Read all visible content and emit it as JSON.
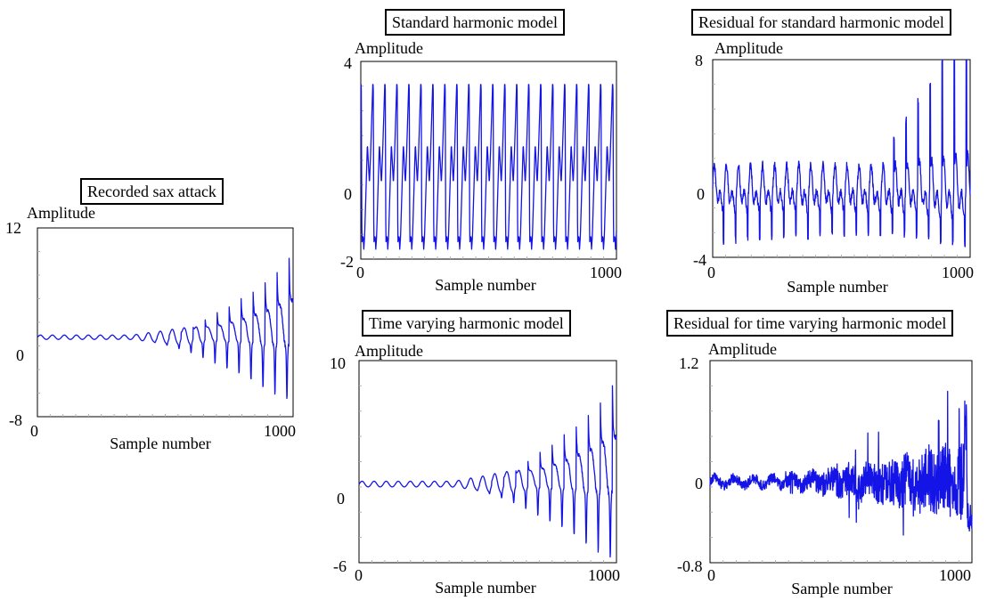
{
  "colors": {
    "line": "#1414e6",
    "axis": "#000000",
    "tick_minor": "#b0b0b0"
  },
  "chart_data": [
    {
      "id": "p1",
      "type": "line",
      "title": "Recorded sax attack",
      "ylabel": "Amplitude",
      "xlabel": "Sample number",
      "xlim": [
        0,
        1024
      ],
      "ylim": [
        -8,
        12
      ],
      "x_tick_labels": [
        "0",
        "1000"
      ],
      "y_tick_labels": [
        "12",
        "0",
        "-8"
      ],
      "y_tick_values": [
        12,
        0,
        -8
      ],
      "series": [
        {
          "period": 48,
          "start_amp": 0.25,
          "end_amp": 7.0,
          "growth_start": 0.35,
          "peak_boost": 1.6,
          "neg_scale": 0.85,
          "offset": 0.4,
          "shape": "growing"
        }
      ]
    },
    {
      "id": "p2",
      "type": "line",
      "title": "Standard harmonic model",
      "ylabel": "Amplitude",
      "xlabel": "Sample number",
      "xlim": [
        0,
        1024
      ],
      "ylim": [
        -2,
        4
      ],
      "x_tick_labels": [
        "0",
        "1000"
      ],
      "y_tick_labels": [
        "4",
        "0",
        "-2"
      ],
      "y_tick_values": [
        4,
        0,
        -2
      ],
      "series": [
        {
          "period": 48,
          "peak": 3.3,
          "low": -1.6,
          "shape": "periodic"
        }
      ]
    },
    {
      "id": "p3",
      "type": "line",
      "title": "Residual for standard harmonic model",
      "ylabel": "Amplitude",
      "xlabel": "Sample number",
      "xlim": [
        0,
        1024
      ],
      "ylim": [
        -4,
        8
      ],
      "x_tick_labels": [
        "0",
        "1000"
      ],
      "y_tick_labels": [
        "8",
        "0",
        "-4"
      ],
      "y_tick_values": [
        8,
        0,
        -4
      ],
      "series": [
        {
          "period": 48,
          "shape": "residual1"
        }
      ]
    },
    {
      "id": "p4",
      "type": "line",
      "title": "Time varying harmonic model",
      "ylabel": "Amplitude",
      "xlabel": "Sample number",
      "xlim": [
        0,
        1024
      ],
      "ylim": [
        -6,
        10
      ],
      "x_tick_labels": [
        "0",
        "1000"
      ],
      "y_tick_labels": [
        "10",
        "0",
        "-6"
      ],
      "y_tick_values": [
        10,
        0,
        -6
      ],
      "series": [
        {
          "period": 48,
          "start_amp": 0.25,
          "end_amp": 6.8,
          "growth_start": 0.35,
          "peak_boost": 1.5,
          "neg_scale": 0.8,
          "offset": 0.2,
          "shape": "growing"
        }
      ]
    },
    {
      "id": "p5",
      "type": "line",
      "title": "Residual for time varying harmonic model",
      "ylabel": "Amplitude",
      "xlabel": "Sample number",
      "xlim": [
        0,
        1024
      ],
      "ylim": [
        -0.8,
        1.2
      ],
      "x_tick_labels": [
        "0",
        "1000"
      ],
      "y_tick_labels": [
        "1.2",
        "0",
        "-0.8"
      ],
      "y_tick_values": [
        1.2,
        0,
        -0.8
      ],
      "series": [
        {
          "shape": "residual2"
        }
      ]
    }
  ]
}
